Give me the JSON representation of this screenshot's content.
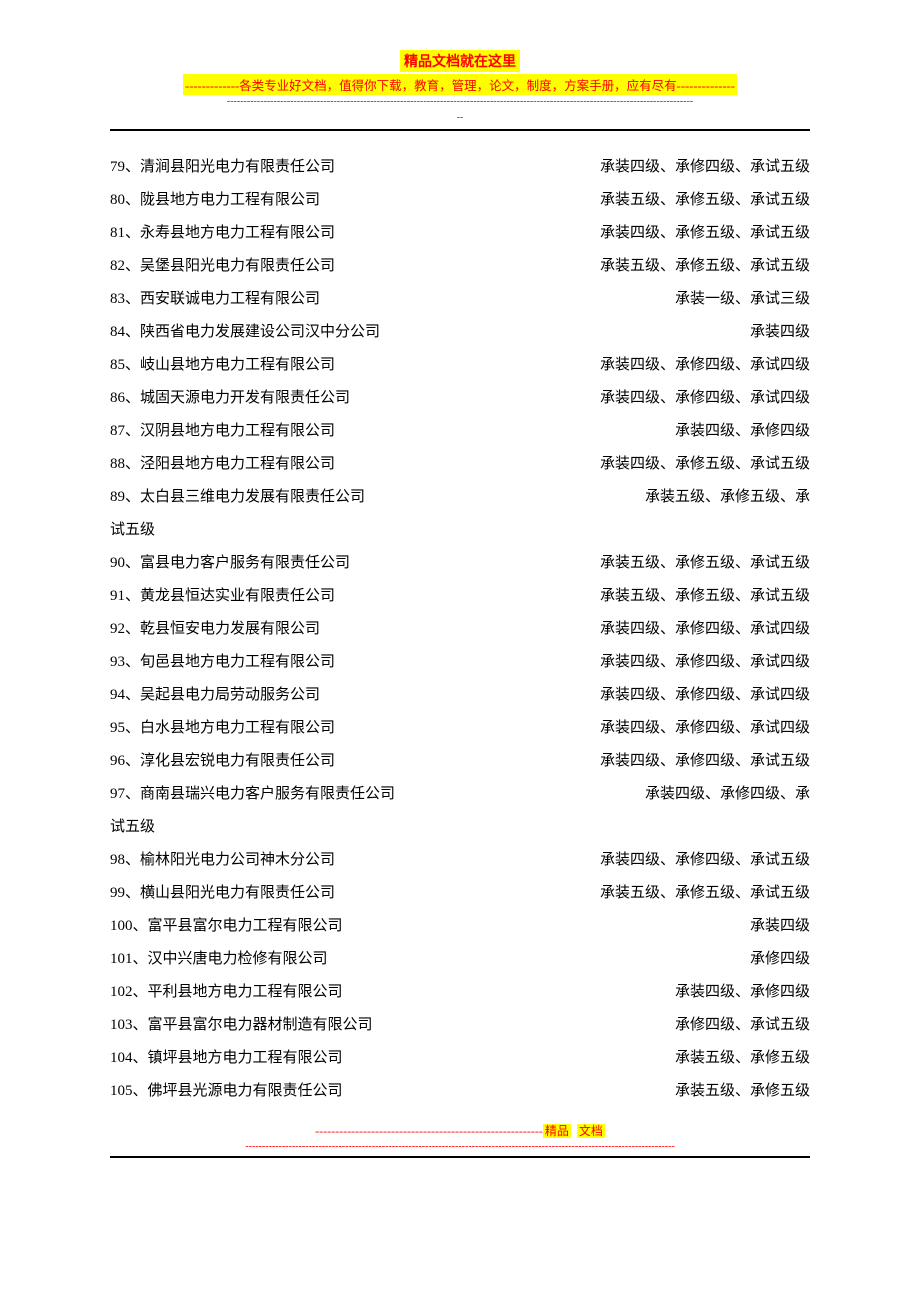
{
  "colors": {
    "highlight_bg": "#ffff00",
    "highlight_fg": "#ff0000",
    "body_text": "#000000",
    "page_bg": "#ffffff",
    "rule": "#000000"
  },
  "typography": {
    "body_fontsize_pt": 11,
    "header_title_fontsize_pt": 10.5,
    "line_height": 2.2,
    "font_family": "SimSun"
  },
  "header": {
    "title": "精品文档就在这里",
    "subtitle": "-------------各类专业好文档，值得你下载，教育，管理，论文，制度，方案手册，应有尽有--------------",
    "dashes1": "--------------------------------------------------------------------------------------------------------------------------------------------",
    "dashes2": "--"
  },
  "footer": {
    "line_prefix": "---------------------------------------------------------",
    "word1": "精品",
    "word2": "文档",
    "dashes": "---------------------------------------------------------------------------------------------------------------------------------"
  },
  "rows": [
    {
      "num": "79",
      "name": "清涧县阳光电力有限责任公司",
      "qual": "承装四级、承修四级、承试五级"
    },
    {
      "num": "80",
      "name": "陇县地方电力工程有限公司",
      "qual": "承装五级、承修五级、承试五级"
    },
    {
      "num": "81",
      "name": "永寿县地方电力工程有限公司",
      "qual": "承装四级、承修五级、承试五级"
    },
    {
      "num": "82",
      "name": "吴堡县阳光电力有限责任公司",
      "qual": "承装五级、承修五级、承试五级"
    },
    {
      "num": "83",
      "name": "西安联诚电力工程有限公司",
      "qual": "承装一级、承试三级"
    },
    {
      "num": "84",
      "name": "陕西省电力发展建设公司汉中分公司",
      "qual": "承装四级"
    },
    {
      "num": "85",
      "name": "岐山县地方电力工程有限公司",
      "qual": "承装四级、承修四级、承试四级"
    },
    {
      "num": "86",
      "name": "城固天源电力开发有限责任公司",
      "qual": "承装四级、承修四级、承试四级"
    },
    {
      "num": "87",
      "name": "汉阴县地方电力工程有限公司",
      "qual": "承装四级、承修四级"
    },
    {
      "num": "88",
      "name": "泾阳县地方电力工程有限公司",
      "qual": "承装四级、承修五级、承试五级"
    },
    {
      "num": "89",
      "name": "太白县三维电力发展有限责任公司",
      "qual": "承装五级、承修五级、承",
      "wrap": "试五级"
    },
    {
      "num": "90",
      "name": "富县电力客户服务有限责任公司",
      "qual": "承装五级、承修五级、承试五级"
    },
    {
      "num": "91",
      "name": "黄龙县恒达实业有限责任公司",
      "qual": "承装五级、承修五级、承试五级"
    },
    {
      "num": "92",
      "name": "乾县恒安电力发展有限公司",
      "qual": "承装四级、承修四级、承试四级"
    },
    {
      "num": "93",
      "name": "旬邑县地方电力工程有限公司",
      "qual": "承装四级、承修四级、承试四级"
    },
    {
      "num": "94",
      "name": "吴起县电力局劳动服务公司",
      "qual": "承装四级、承修四级、承试四级"
    },
    {
      "num": "95",
      "name": "白水县地方电力工程有限公司",
      "qual": "承装四级、承修四级、承试四级"
    },
    {
      "num": "96",
      "name": "淳化县宏锐电力有限责任公司",
      "qual": "承装四级、承修四级、承试五级"
    },
    {
      "num": "97",
      "name": "商南县瑞兴电力客户服务有限责任公司",
      "qual": "承装四级、承修四级、承",
      "wrap": "试五级"
    },
    {
      "num": "98",
      "name": "榆林阳光电力公司神木分公司",
      "qual": "承装四级、承修四级、承试五级"
    },
    {
      "num": "99",
      "name": "横山县阳光电力有限责任公司",
      "qual": "承装五级、承修五级、承试五级"
    },
    {
      "num": "100",
      "name": "富平县富尔电力工程有限公司",
      "qual": "承装四级"
    },
    {
      "num": "101",
      "name": "汉中兴唐电力检修有限公司",
      "qual": "承修四级"
    },
    {
      "num": "102",
      "name": "平利县地方电力工程有限公司",
      "qual": "承装四级、承修四级"
    },
    {
      "num": "103",
      "name": "富平县富尔电力器材制造有限公司",
      "qual": "承修四级、承试五级"
    },
    {
      "num": "104",
      "name": "镇坪县地方电力工程有限公司",
      "qual": "承装五级、承修五级"
    },
    {
      "num": "105",
      "name": "佛坪县光源电力有限责任公司",
      "qual": "承装五级、承修五级"
    }
  ]
}
